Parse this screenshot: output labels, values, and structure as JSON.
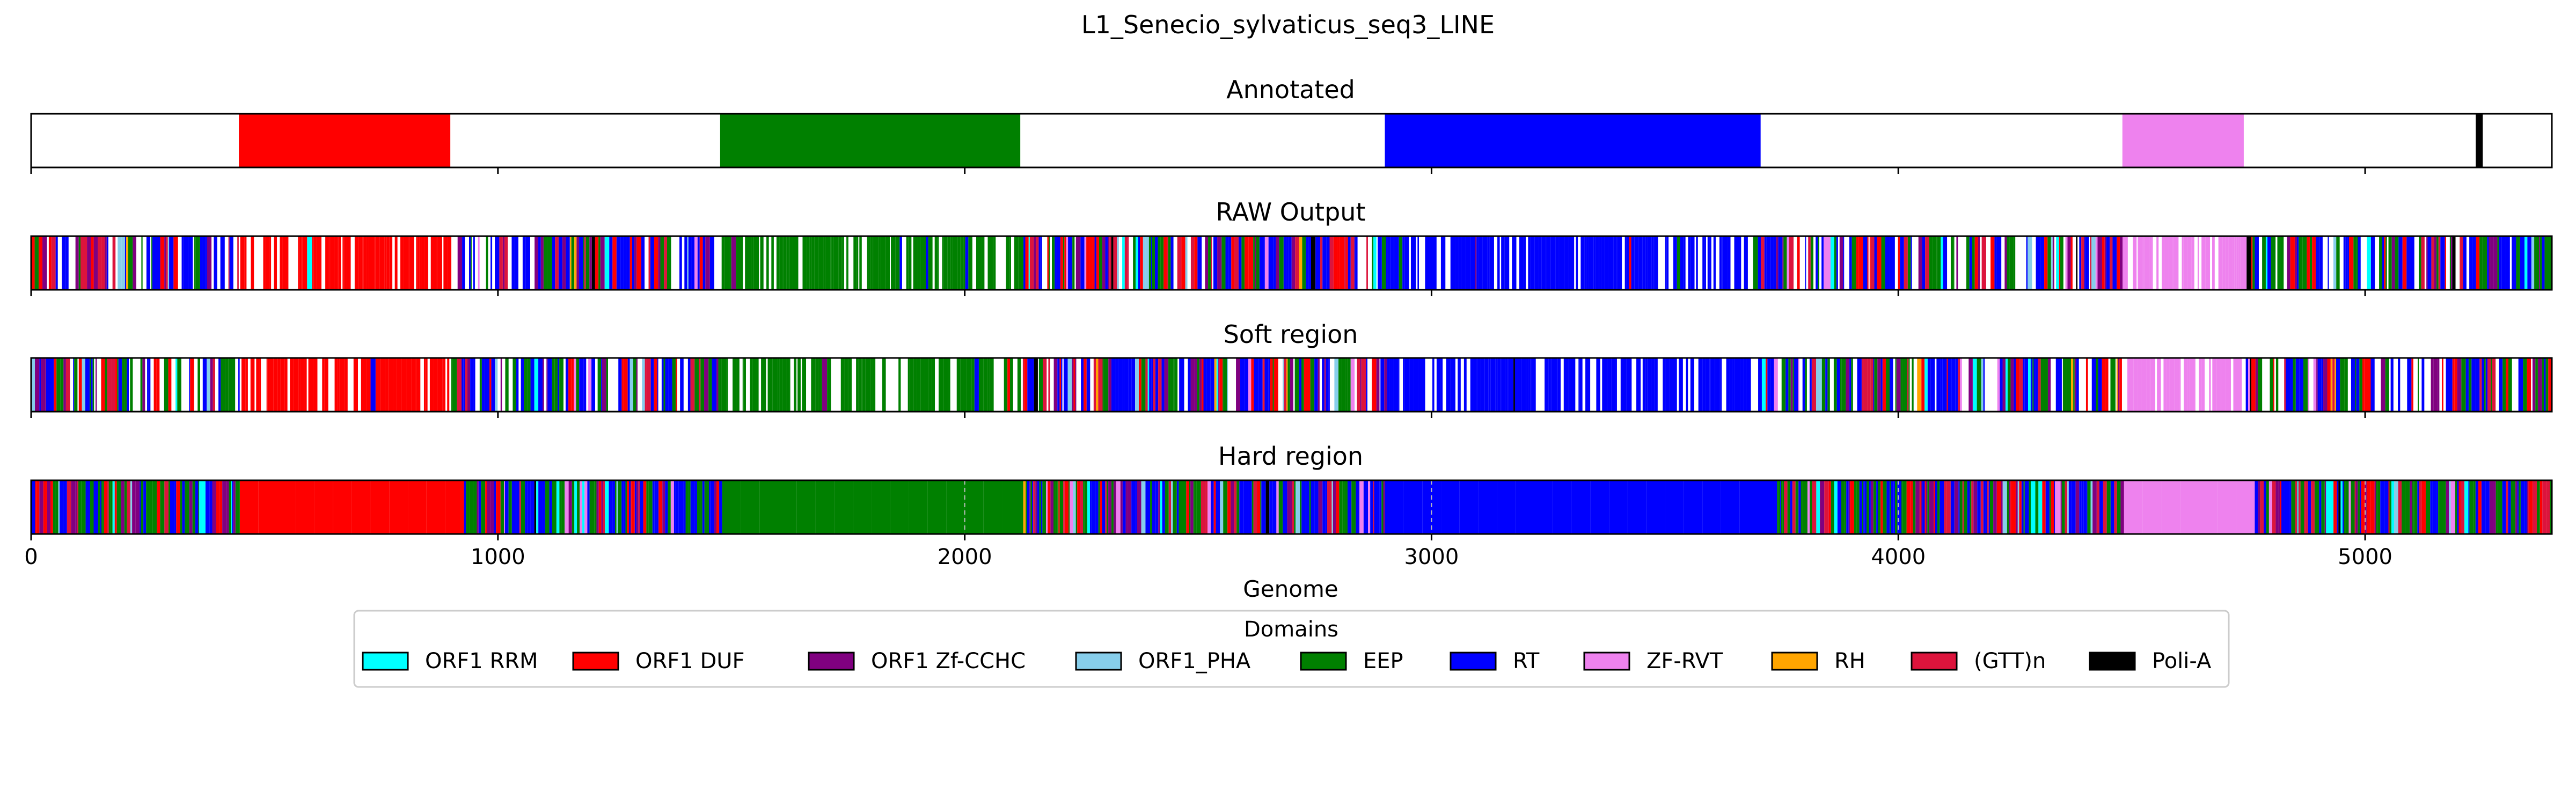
{
  "chart_data": {
    "type": "bar",
    "title": "L1_Senecio_sylvaticus_seq3_LINE",
    "xlabel": "Genome",
    "xlim": [
      0,
      5400
    ],
    "x_ticks": [
      0,
      1000,
      2000,
      3000,
      4000,
      5000
    ],
    "x_tick_labels": [
      "0",
      "1000",
      "2000",
      "3000",
      "4000",
      "5000"
    ],
    "legend": {
      "title": "Domains",
      "placement": "bottom-center",
      "entries": [
        {
          "name": "ORF1 RRM",
          "color": "#00ffff"
        },
        {
          "name": "ORF1 DUF",
          "color": "#ff0000"
        },
        {
          "name": "ORF1 Zf-CCHC",
          "color": "#800080"
        },
        {
          "name": "ORF1_PHA",
          "color": "#87ceeb"
        },
        {
          "name": "EEP",
          "color": "#008000"
        },
        {
          "name": "RT",
          "color": "#0000ff"
        },
        {
          "name": "ZF-RVT",
          "color": "#ee82ee"
        },
        {
          "name": "RH",
          "color": "#ffa500"
        },
        {
          "name": "(GTT)n",
          "color": "#dc143c"
        },
        {
          "name": "Poli-A",
          "color": "#000000"
        }
      ]
    },
    "panels": [
      {
        "title": "Annotated",
        "segments": [
          {
            "domain": "ORF1 DUF",
            "start": 445,
            "end": 898
          },
          {
            "domain": "EEP",
            "start": 1476,
            "end": 2119
          },
          {
            "domain": "RT",
            "start": 2900,
            "end": 3705
          },
          {
            "domain": "ZF-RVT",
            "start": 4480,
            "end": 4740
          },
          {
            "domain": "Poli-A",
            "start": 5237,
            "end": 5252
          }
        ]
      },
      {
        "title": "RAW Output"
      },
      {
        "title": "Soft region"
      },
      {
        "title": "Hard region",
        "grid_dashed_at": [
          2000,
          3000,
          4000,
          5000
        ]
      }
    ]
  }
}
